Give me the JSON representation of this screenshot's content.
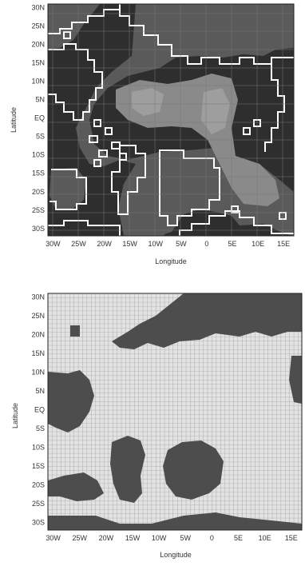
{
  "chart_data": [
    {
      "type": "heatmap",
      "xlabel": "Longitude",
      "ylabel": "Latitude",
      "x_ticks": [
        "30W",
        "25W",
        "20W",
        "15W",
        "10W",
        "5W",
        "0",
        "5E",
        "10E",
        "15E"
      ],
      "y_ticks": [
        "30N",
        "25N",
        "20N",
        "15N",
        "10N",
        "5N",
        "EQ",
        "5S",
        "10S",
        "15S",
        "20S",
        "25S",
        "30S"
      ],
      "xlim": [
        -31,
        17
      ],
      "ylim": [
        -32,
        31
      ],
      "grid": true,
      "colors": {
        "background": "#2e2e2e",
        "mid": "#5a5a5a",
        "light": "#8a8a8a",
        "lighter": "#9e9e9e",
        "outline": "#ffffff"
      }
    },
    {
      "type": "heatmap",
      "xlabel": "Longitude",
      "ylabel": "Latitude",
      "x_ticks": [
        "30W",
        "25W",
        "20W",
        "15W",
        "10W",
        "5W",
        "0",
        "5E",
        "10E",
        "15E"
      ],
      "y_ticks": [
        "30N",
        "25N",
        "20N",
        "15N",
        "10N",
        "5N",
        "EQ",
        "5S",
        "10S",
        "15S",
        "20S",
        "25S",
        "30S"
      ],
      "xlim": [
        -31,
        17
      ],
      "ylim": [
        -32,
        31
      ],
      "grid": true,
      "colors": {
        "dark": "#4d4d4d",
        "light": "#e2e2e2",
        "grid": "#8c8c8c"
      }
    }
  ]
}
